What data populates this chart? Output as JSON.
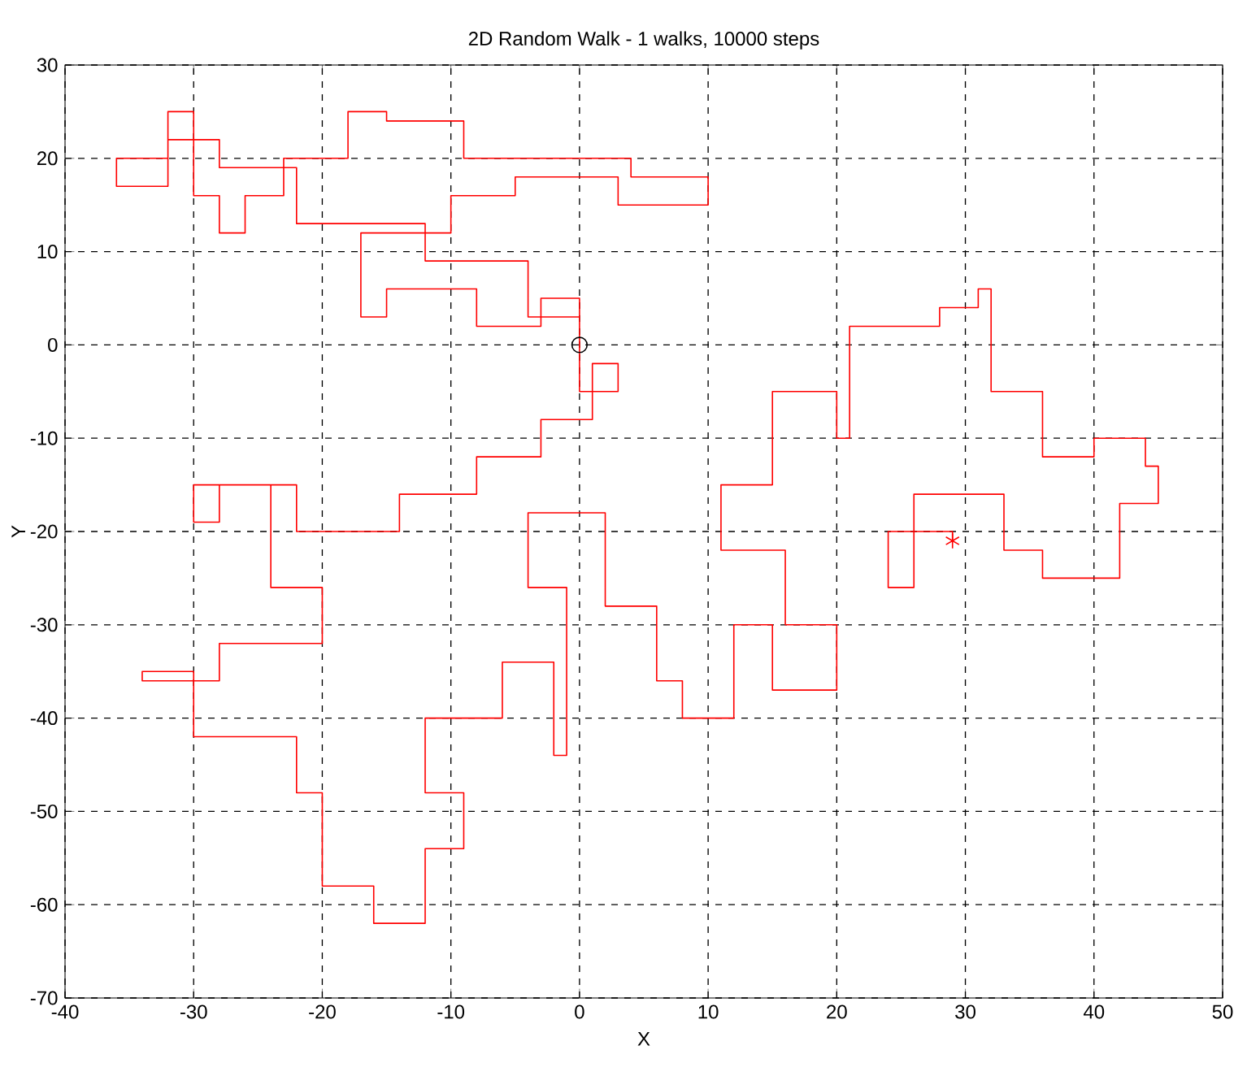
{
  "chart_data": {
    "type": "line",
    "title": "2D Random Walk - 1 walks, 10000 steps",
    "xlabel": "X",
    "ylabel": "Y",
    "xlim": [
      -40,
      50
    ],
    "ylim": [
      -70,
      30
    ],
    "xticks": [
      -40,
      -30,
      -20,
      -10,
      0,
      10,
      20,
      30,
      40,
      50
    ],
    "yticks": [
      -70,
      -60,
      -50,
      -40,
      -30,
      -20,
      -10,
      0,
      10,
      20,
      30
    ],
    "grid": true,
    "series": [
      {
        "color": "#ff0000",
        "line_style": "solid",
        "marker": "none",
        "x": [
          0,
          0,
          -3,
          -3,
          -8,
          -8,
          -15,
          -15,
          -17,
          -17,
          -10,
          -10,
          -5,
          -5,
          3,
          3,
          10,
          10,
          4,
          4,
          -9,
          -9,
          -15,
          -15,
          -18,
          -18,
          -23,
          -23,
          -26,
          -26,
          -28,
          -28,
          -30,
          -30,
          -32,
          -32,
          -36,
          -36,
          -32,
          -32,
          -28,
          -28,
          -22,
          -22,
          -12,
          -12,
          -4,
          -4,
          0,
          0,
          3,
          3,
          1,
          1,
          -3,
          -3,
          -8,
          -8,
          -14,
          -14,
          -22,
          -22,
          -28,
          -28,
          -30,
          -30,
          -24,
          -24,
          -20,
          -20,
          -28,
          -28,
          -34,
          -34,
          -30,
          -30,
          -22,
          -22,
          -20,
          -20,
          -16,
          -16,
          -12,
          -12,
          -9,
          -9,
          -12,
          -12,
          -6,
          -6,
          -2,
          -2,
          -1,
          -1,
          -4,
          -4,
          2,
          2,
          6,
          6,
          8,
          8,
          12,
          12,
          15,
          15,
          20,
          20,
          16,
          16,
          11,
          11,
          15,
          15,
          20,
          20,
          21,
          21,
          28,
          28,
          31,
          31,
          32,
          32,
          36,
          36,
          40,
          40,
          44,
          44,
          45,
          45,
          42,
          42,
          36,
          36,
          33,
          33,
          26,
          26,
          24,
          24,
          29,
          29
        ],
        "values": [
          0,
          5,
          5,
          2,
          2,
          6,
          6,
          3,
          3,
          12,
          12,
          16,
          16,
          18,
          18,
          15,
          15,
          18,
          18,
          20,
          20,
          24,
          24,
          25,
          25,
          20,
          20,
          16,
          16,
          12,
          12,
          16,
          16,
          25,
          25,
          20,
          20,
          17,
          17,
          22,
          22,
          19,
          19,
          13,
          13,
          9,
          9,
          3,
          3,
          -5,
          -5,
          -2,
          -2,
          -8,
          -8,
          -12,
          -12,
          -16,
          -16,
          -20,
          -20,
          -15,
          -15,
          -19,
          -19,
          -15,
          -15,
          -26,
          -26,
          -32,
          -32,
          -36,
          -36,
          -35,
          -35,
          -42,
          -42,
          -48,
          -48,
          -58,
          -58,
          -62,
          -62,
          -54,
          -54,
          -48,
          -48,
          -40,
          -40,
          -34,
          -34,
          -44,
          -44,
          -26,
          -26,
          -18,
          -18,
          -28,
          -28,
          -36,
          -36,
          -40,
          -40,
          -30,
          -30,
          -37,
          -37,
          -30,
          -30,
          -22,
          -22,
          -15,
          -15,
          -5,
          -5,
          -10,
          -10,
          2,
          2,
          4,
          4,
          6,
          6,
          -5,
          -5,
          -12,
          -12,
          -10,
          -10,
          -13,
          -13,
          -17,
          -17,
          -25,
          -25,
          -22,
          -22,
          -16,
          -16,
          -26,
          -26,
          -20,
          -20,
          -21
        ]
      },
      {
        "type": "scatter",
        "color": "#000000",
        "marker": "circle",
        "x": [
          0
        ],
        "values": [
          0
        ]
      },
      {
        "type": "scatter",
        "color": "#ff0000",
        "marker": "cross",
        "x": [
          29
        ],
        "values": [
          -21
        ]
      }
    ]
  }
}
